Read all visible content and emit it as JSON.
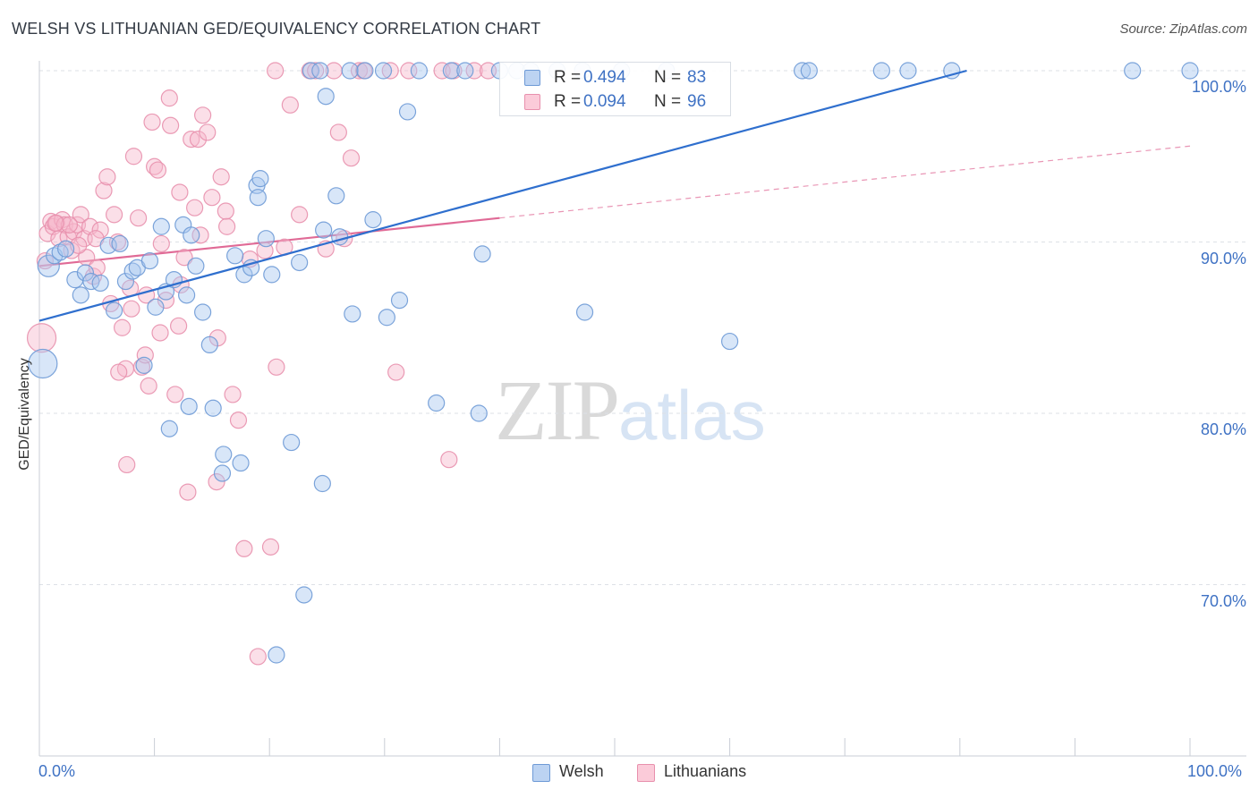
{
  "header": {
    "title": "WELSH VS LITHUANIAN GED/EQUIVALENCY CORRELATION CHART",
    "source": "Source: ZipAtlas.com"
  },
  "colors": {
    "welsh_fill": "#a9c7ef",
    "welsh_stroke": "#6e9ad6",
    "welsh_line": "#2f6fce",
    "lith_fill": "#f7b9cc",
    "lith_stroke": "#e890ad",
    "lith_line": "#e06a96",
    "axis_text": "#3f72c4",
    "grid": "#dde1e6"
  },
  "stats_box": {
    "rows": [
      {
        "r_label": "R = ",
        "r_value": "0.494",
        "n_label": "N = ",
        "n_value": "83"
      },
      {
        "r_label": "R = ",
        "r_value": "0.094",
        "n_label": "N = ",
        "n_value": "96"
      }
    ]
  },
  "legend": {
    "welsh": "Welsh",
    "lithuanians": "Lithuanians"
  },
  "watermark": {
    "zip": "ZIP",
    "atlas": "atlas"
  },
  "chart_data": {
    "type": "scatter",
    "title": "WELSH VS LITHUANIAN GED/EQUIVALENCY CORRELATION CHART",
    "xlabel": "",
    "ylabel": "GED/Equivalency",
    "xlim": [
      0,
      100
    ],
    "ylim": [
      59.5,
      100.8
    ],
    "x_tick_labels": [
      "0.0%",
      "100.0%"
    ],
    "y_ticks": [
      70,
      80,
      90,
      100
    ],
    "y_tick_labels": [
      "70.0%",
      "80.0%",
      "90.0%",
      "100.0%"
    ],
    "grid": "horizontal dashed",
    "legend_position": "bottom-center",
    "series": [
      {
        "name": "Welsh",
        "r": 0.494,
        "n": 83,
        "trend": {
          "x": [
            0,
            80.6
          ],
          "y": [
            85.4,
            100.0
          ]
        },
        "points": [
          [
            0.3,
            82.9,
            3
          ],
          [
            0.8,
            88.6,
            2
          ],
          [
            1.3,
            89.2,
            1
          ],
          [
            1.8,
            89.4,
            1
          ],
          [
            2.3,
            89.6,
            1
          ],
          [
            3.1,
            87.8,
            1
          ],
          [
            3.6,
            86.9,
            1
          ],
          [
            4.0,
            88.2,
            1
          ],
          [
            4.5,
            87.7,
            1
          ],
          [
            5.3,
            87.6,
            1
          ],
          [
            6.0,
            89.8,
            1
          ],
          [
            6.5,
            86.0,
            1
          ],
          [
            7.0,
            89.9,
            1
          ],
          [
            7.5,
            87.7,
            1
          ],
          [
            8.1,
            88.3,
            1
          ],
          [
            8.5,
            88.5,
            1
          ],
          [
            9.1,
            82.8,
            1
          ],
          [
            9.6,
            88.9,
            1
          ],
          [
            10.1,
            86.2,
            1
          ],
          [
            10.6,
            90.9,
            1
          ],
          [
            11.0,
            87.1,
            1
          ],
          [
            11.3,
            79.1,
            1
          ],
          [
            11.7,
            87.8,
            1
          ],
          [
            12.5,
            91.0,
            1
          ],
          [
            12.8,
            86.9,
            1
          ],
          [
            13.2,
            90.4,
            1
          ],
          [
            13.0,
            80.4,
            1
          ],
          [
            13.6,
            88.6,
            1
          ],
          [
            14.2,
            85.9,
            1
          ],
          [
            14.8,
            84.0,
            1
          ],
          [
            15.1,
            80.3,
            1
          ],
          [
            15.9,
            76.5,
            1
          ],
          [
            16.0,
            77.6,
            1
          ],
          [
            17.0,
            89.2,
            1
          ],
          [
            17.5,
            77.1,
            1
          ],
          [
            17.8,
            88.1,
            1
          ],
          [
            18.4,
            88.5,
            1
          ],
          [
            18.9,
            93.3,
            1
          ],
          [
            19.2,
            93.7,
            1
          ],
          [
            19.7,
            90.2,
            1
          ],
          [
            20.2,
            88.1,
            1
          ],
          [
            20.6,
            65.9,
            1
          ],
          [
            21.9,
            78.3,
            1
          ],
          [
            22.6,
            88.8,
            1
          ],
          [
            23.0,
            69.4,
            1
          ],
          [
            23.6,
            100.0,
            1
          ],
          [
            24.4,
            100.0,
            1
          ],
          [
            24.9,
            98.5,
            1
          ],
          [
            24.7,
            90.7,
            1
          ],
          [
            25.8,
            92.7,
            1
          ],
          [
            26.1,
            90.3,
            1
          ],
          [
            27.0,
            100.0,
            1
          ],
          [
            27.2,
            85.8,
            1
          ],
          [
            28.3,
            100.0,
            1
          ],
          [
            29.0,
            91.3,
            1
          ],
          [
            29.9,
            100.0,
            1
          ],
          [
            30.2,
            85.6,
            1
          ],
          [
            31.3,
            86.6,
            1
          ],
          [
            32.0,
            97.6,
            1
          ],
          [
            33.0,
            100.0,
            1
          ],
          [
            34.5,
            80.6,
            1
          ],
          [
            35.8,
            100.0,
            1
          ],
          [
            37.0,
            100.0,
            1
          ],
          [
            38.2,
            80.0,
            1
          ],
          [
            38.5,
            89.3,
            1
          ],
          [
            40.0,
            100.0,
            1
          ],
          [
            41.5,
            100.0,
            1
          ],
          [
            42.7,
            100.0,
            1
          ],
          [
            45.0,
            100.0,
            1
          ],
          [
            47.2,
            100.0,
            1
          ],
          [
            47.4,
            85.9,
            1
          ],
          [
            50.6,
            100.0,
            1
          ],
          [
            54.5,
            100.0,
            1
          ],
          [
            60.0,
            84.2,
            1
          ],
          [
            66.3,
            100.0,
            1
          ],
          [
            66.9,
            100.0,
            1
          ],
          [
            73.2,
            100.0,
            1
          ],
          [
            75.5,
            100.0,
            1
          ],
          [
            79.3,
            100.0,
            1
          ],
          [
            95.0,
            100.0,
            1
          ],
          [
            100.0,
            100.0,
            1
          ],
          [
            19.0,
            92.6,
            1
          ],
          [
            24.6,
            75.9,
            1
          ]
        ]
      },
      {
        "name": "Lithuanians",
        "r": 0.094,
        "n": 96,
        "trend": {
          "x": [
            0,
            100
          ],
          "y": [
            88.6,
            95.6
          ],
          "solid_to_x": 40.0
        },
        "points": [
          [
            0.2,
            84.4,
            3
          ],
          [
            0.5,
            88.9,
            1
          ],
          [
            0.7,
            90.5,
            1
          ],
          [
            1.0,
            91.2,
            1
          ],
          [
            1.2,
            90.9,
            1
          ],
          [
            1.5,
            91.1,
            1
          ],
          [
            1.7,
            90.2,
            1
          ],
          [
            2.0,
            91.3,
            1
          ],
          [
            2.2,
            91.0,
            1
          ],
          [
            2.5,
            90.3,
            1
          ],
          [
            2.8,
            89.5,
            1
          ],
          [
            3.0,
            90.6,
            1
          ],
          [
            3.3,
            91.0,
            1
          ],
          [
            3.6,
            91.6,
            1
          ],
          [
            3.9,
            90.2,
            1
          ],
          [
            4.1,
            89.1,
            1
          ],
          [
            4.4,
            90.9,
            1
          ],
          [
            4.7,
            88.0,
            1
          ],
          [
            5.0,
            88.5,
            1
          ],
          [
            5.3,
            90.7,
            1
          ],
          [
            5.6,
            93.0,
            1
          ],
          [
            5.9,
            93.8,
            1
          ],
          [
            6.2,
            86.4,
            1
          ],
          [
            6.5,
            91.6,
            1
          ],
          [
            6.8,
            90.0,
            1
          ],
          [
            7.2,
            85.0,
            1
          ],
          [
            7.5,
            82.6,
            1
          ],
          [
            7.6,
            77.0,
            1
          ],
          [
            7.9,
            87.3,
            1
          ],
          [
            8.2,
            95.0,
            1
          ],
          [
            8.6,
            91.4,
            1
          ],
          [
            8.9,
            82.7,
            1
          ],
          [
            9.2,
            83.4,
            1
          ],
          [
            9.5,
            81.6,
            1
          ],
          [
            9.8,
            97.0,
            1
          ],
          [
            10.0,
            94.4,
            1
          ],
          [
            10.3,
            94.2,
            1
          ],
          [
            10.5,
            84.7,
            1
          ],
          [
            11.0,
            86.6,
            1
          ],
          [
            11.3,
            98.4,
            1
          ],
          [
            11.4,
            96.8,
            1
          ],
          [
            11.8,
            81.1,
            1
          ],
          [
            12.1,
            85.1,
            1
          ],
          [
            12.3,
            87.5,
            1
          ],
          [
            12.6,
            89.1,
            1
          ],
          [
            12.9,
            75.4,
            1
          ],
          [
            13.2,
            96.0,
            1
          ],
          [
            13.5,
            92.0,
            1
          ],
          [
            13.8,
            96.0,
            1
          ],
          [
            14.2,
            97.4,
            1
          ],
          [
            14.6,
            96.4,
            1
          ],
          [
            15.0,
            92.6,
            1
          ],
          [
            15.5,
            84.4,
            1
          ],
          [
            15.8,
            93.8,
            1
          ],
          [
            16.3,
            90.9,
            1
          ],
          [
            16.8,
            81.1,
            1
          ],
          [
            17.3,
            79.6,
            1
          ],
          [
            17.8,
            72.1,
            1
          ],
          [
            18.3,
            89.0,
            1
          ],
          [
            19.0,
            65.8,
            1
          ],
          [
            19.6,
            89.5,
            1
          ],
          [
            20.1,
            72.2,
            1
          ],
          [
            20.6,
            82.7,
            1
          ],
          [
            21.3,
            89.7,
            1
          ],
          [
            21.8,
            98.0,
            1
          ],
          [
            22.6,
            91.6,
            1
          ],
          [
            23.5,
            100.0,
            1
          ],
          [
            24.0,
            100.0,
            1
          ],
          [
            24.9,
            89.6,
            1
          ],
          [
            25.6,
            100.0,
            1
          ],
          [
            26.0,
            96.4,
            1
          ],
          [
            26.5,
            90.2,
            1
          ],
          [
            27.1,
            94.9,
            1
          ],
          [
            27.8,
            100.0,
            1
          ],
          [
            28.2,
            100.0,
            1
          ],
          [
            30.5,
            100.0,
            1
          ],
          [
            31.0,
            82.4,
            1
          ],
          [
            32.1,
            100.0,
            1
          ],
          [
            35.0,
            100.0,
            1
          ],
          [
            35.6,
            77.3,
            1
          ],
          [
            36.0,
            100.0,
            1
          ],
          [
            37.8,
            100.0,
            1
          ],
          [
            39.0,
            100.0,
            1
          ],
          [
            20.5,
            100.0,
            1
          ],
          [
            16.2,
            91.8,
            1
          ],
          [
            12.2,
            92.9,
            1
          ],
          [
            10.6,
            89.9,
            1
          ],
          [
            9.3,
            86.9,
            1
          ],
          [
            8.0,
            86.1,
            1
          ],
          [
            6.9,
            82.4,
            1
          ],
          [
            14.0,
            90.4,
            1
          ],
          [
            15.4,
            76.0,
            1
          ],
          [
            4.9,
            90.2,
            1
          ],
          [
            3.4,
            89.8,
            1
          ],
          [
            2.6,
            91.0,
            1
          ],
          [
            1.4,
            91.1,
            1
          ]
        ]
      }
    ]
  }
}
